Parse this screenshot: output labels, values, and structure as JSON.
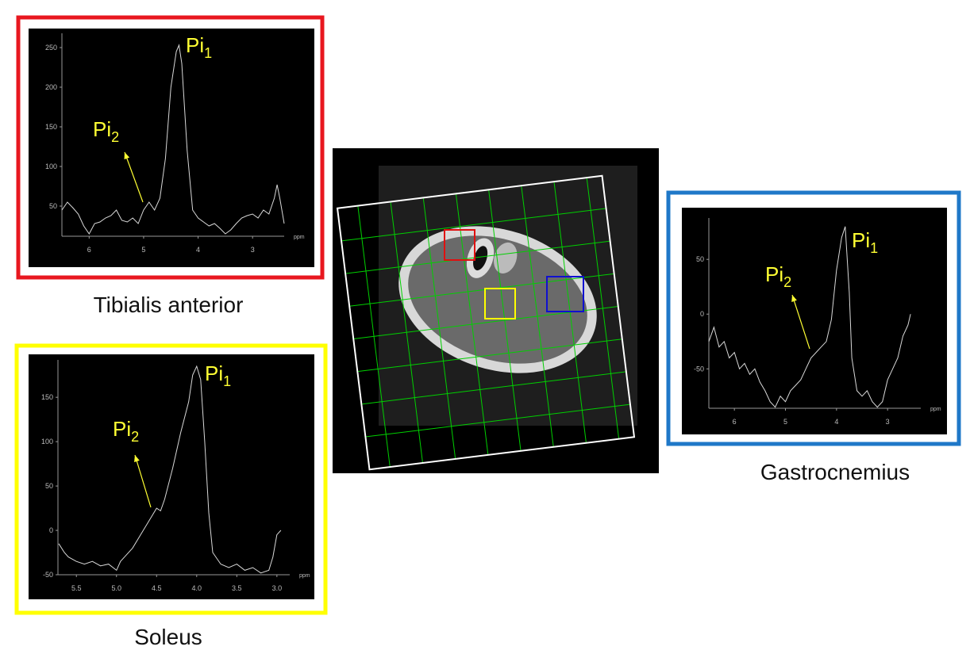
{
  "chart_data": [
    {
      "type": "line",
      "caption": "Tibialis anterior",
      "x_label": "ppm",
      "color": "#d8d8d8",
      "border_color": "#e8171f",
      "annotations": [
        {
          "text": "Pi",
          "sub": "1"
        },
        {
          "text": "Pi",
          "sub": "2"
        }
      ],
      "xlim": [
        6.5,
        2.42
      ],
      "xticks": [
        6,
        5,
        4,
        3
      ],
      "ylim": [
        12,
        260
      ],
      "yticks": [
        50,
        100,
        150,
        200,
        250
      ],
      "x": [
        6.5,
        6.4,
        6.3,
        6.2,
        6.1,
        6.0,
        5.9,
        5.8,
        5.7,
        5.6,
        5.5,
        5.4,
        5.3,
        5.2,
        5.1,
        5.0,
        4.9,
        4.8,
        4.7,
        4.6,
        4.5,
        4.4,
        4.35,
        4.3,
        4.2,
        4.1,
        4.0,
        3.9,
        3.8,
        3.7,
        3.6,
        3.5,
        3.4,
        3.3,
        3.2,
        3.1,
        3.0,
        2.9,
        2.8,
        2.7,
        2.6,
        2.55,
        2.5,
        2.42
      ],
      "values": [
        45,
        55,
        48,
        40,
        25,
        15,
        28,
        30,
        35,
        38,
        45,
        32,
        30,
        35,
        28,
        45,
        55,
        45,
        60,
        110,
        200,
        245,
        253,
        230,
        120,
        45,
        35,
        30,
        25,
        28,
        22,
        15,
        20,
        28,
        35,
        38,
        40,
        35,
        45,
        40,
        60,
        77,
        60,
        28
      ]
    },
    {
      "type": "line",
      "caption": "Soleus",
      "x_label": "ppm",
      "color": "#d8d8d8",
      "border_color": "#ffff00",
      "annotations": [
        {
          "text": "Pi",
          "sub": "1"
        },
        {
          "text": "Pi",
          "sub": "2"
        }
      ],
      "xlim": [
        5.73,
        2.84
      ],
      "xticks": [
        5.5,
        {
          "value": 5,
          "label": "5.0"
        },
        4.5,
        {
          "value": 4,
          "label": "4.0"
        },
        3.5,
        {
          "value": 3,
          "label": "3.0"
        }
      ],
      "ylim": [
        -50,
        185
      ],
      "yticks": [
        -50,
        0,
        50,
        100,
        150
      ],
      "x": [
        5.72,
        5.65,
        5.6,
        5.5,
        5.4,
        5.3,
        5.2,
        5.1,
        5.0,
        4.95,
        4.9,
        4.8,
        4.7,
        4.6,
        4.5,
        4.45,
        4.4,
        4.3,
        4.2,
        4.1,
        4.05,
        4.0,
        3.95,
        3.9,
        3.85,
        3.8,
        3.7,
        3.6,
        3.5,
        3.4,
        3.3,
        3.2,
        3.1,
        3.05,
        3.0,
        2.95
      ],
      "values": [
        -15,
        -25,
        -30,
        -35,
        -38,
        -35,
        -40,
        -38,
        -45,
        -35,
        -30,
        -20,
        -5,
        10,
        25,
        22,
        35,
        70,
        110,
        145,
        175,
        185,
        170,
        100,
        20,
        -25,
        -38,
        -42,
        -38,
        -45,
        -42,
        -48,
        -45,
        -30,
        -5,
        0
      ]
    },
    {
      "type": "line",
      "caption": "Gastrocnemius",
      "x_label": "ppm",
      "color": "#d8d8d8",
      "border_color": "#1f78c8",
      "annotations": [
        {
          "text": "Pi",
          "sub": "1"
        },
        {
          "text": "Pi",
          "sub": "2"
        }
      ],
      "xlim": [
        6.5,
        2.35
      ],
      "xticks": [
        6,
        5,
        4,
        3
      ],
      "ylim": [
        -86,
        82
      ],
      "yticks": [
        -50,
        0,
        50
      ],
      "x": [
        6.5,
        6.4,
        6.3,
        6.2,
        6.1,
        6.0,
        5.9,
        5.8,
        5.7,
        5.6,
        5.5,
        5.4,
        5.3,
        5.2,
        5.1,
        5.0,
        4.9,
        4.8,
        4.7,
        4.6,
        4.5,
        4.4,
        4.3,
        4.2,
        4.1,
        4.0,
        3.9,
        3.83,
        3.75,
        3.7,
        3.6,
        3.5,
        3.4,
        3.3,
        3.2,
        3.1,
        3.0,
        2.9,
        2.8,
        2.7,
        2.6,
        2.55
      ],
      "values": [
        -25,
        -12,
        -30,
        -25,
        -40,
        -35,
        -50,
        -45,
        -55,
        -50,
        -62,
        -70,
        -80,
        -85,
        -75,
        -80,
        -70,
        -65,
        -60,
        -50,
        -40,
        -35,
        -30,
        -25,
        -5,
        40,
        70,
        80,
        20,
        -40,
        -70,
        -75,
        -70,
        -80,
        -85,
        -80,
        -60,
        -50,
        -40,
        -20,
        -10,
        0
      ]
    }
  ]
}
